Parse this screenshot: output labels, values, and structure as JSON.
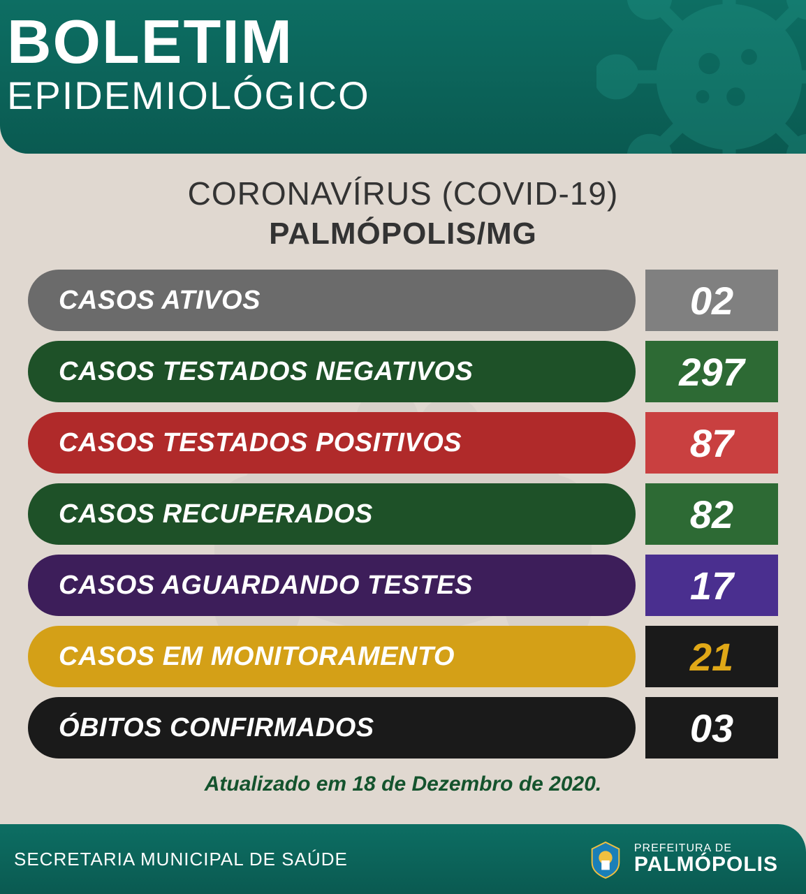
{
  "header": {
    "title_main": "BOLETIM",
    "title_sub": "EPIDEMIOLÓGICO"
  },
  "heading": {
    "line1": "CORONAVÍRUS (COVID-19)",
    "line2": "PALMÓPOLIS/MG"
  },
  "colors": {
    "header_bg": "#0d6e63",
    "page_bg": "#e0d8d0",
    "heading_text": "#333333",
    "update_text": "#14532d"
  },
  "stats": [
    {
      "label": "CASOS ATIVOS",
      "value": "02",
      "label_bg": "#6b6b6b",
      "value_bg": "#808080",
      "value_color": "#ffffff"
    },
    {
      "label": "CASOS TESTADOS NEGATIVOS",
      "value": "297",
      "label_bg": "#1e5128",
      "value_bg": "#2d6a34",
      "value_color": "#ffffff"
    },
    {
      "label": "CASOS TESTADOS POSITIVOS",
      "value": "87",
      "label_bg": "#b02a2a",
      "value_bg": "#c94040",
      "value_color": "#ffffff"
    },
    {
      "label": "CASOS RECUPERADOS",
      "value": "82",
      "label_bg": "#1e5128",
      "value_bg": "#2d6a34",
      "value_color": "#ffffff"
    },
    {
      "label": "CASOS AGUARDANDO TESTES",
      "value": "17",
      "label_bg": "#3d1e5a",
      "value_bg": "#4a2f8f",
      "value_color": "#ffffff"
    },
    {
      "label": "CASOS EM MONITORAMENTO",
      "value": "21",
      "label_bg": "#d4a017",
      "value_bg": "#1a1a1a",
      "value_color": "#e0a817"
    },
    {
      "label": "ÓBITOS CONFIRMADOS",
      "value": "03",
      "label_bg": "#1a1a1a",
      "value_bg": "#1a1a1a",
      "value_color": "#ffffff"
    }
  ],
  "update_text": "Atualizado em 18 de Dezembro de 2020.",
  "footer": {
    "left": "SECRETARIA MUNICIPAL DE SAÚDE",
    "right_small": "PREFEITURA DE",
    "right_big": "PALMÓPOLIS"
  }
}
